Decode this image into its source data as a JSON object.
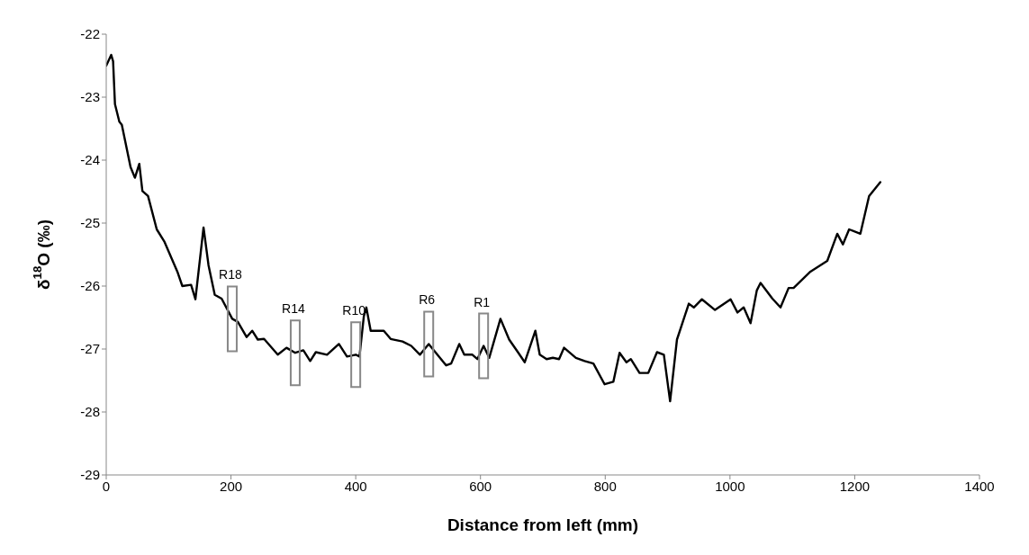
{
  "chart_data": {
    "type": "line",
    "xlabel": "Distance from left (mm)",
    "ylabel": "δ$^{18}$O (‰)",
    "xlim": [
      0,
      1400
    ],
    "xticks": [
      0,
      200,
      400,
      600,
      800,
      1000,
      1200,
      1400
    ],
    "ylim": [
      -29,
      -22
    ],
    "yticks": [
      -29,
      -28,
      -27,
      -26,
      -25,
      -24,
      -23,
      -22
    ],
    "grid": false,
    "legend": false,
    "marker": "none",
    "line_style": "solid",
    "annotations": [
      {
        "text": "R18",
        "x": 202,
        "y": -26.52
      },
      {
        "text": "R14",
        "x": 303,
        "y": -27.06
      },
      {
        "text": "R10",
        "x": 400,
        "y": -27.09
      },
      {
        "text": "R6",
        "x": 517,
        "y": -26.92
      },
      {
        "text": "R1",
        "x": 605,
        "y": -26.95
      }
    ],
    "x": [
      0,
      8,
      11,
      14,
      21,
      25,
      39,
      46,
      53,
      58,
      67,
      81,
      93,
      114,
      122,
      136,
      143,
      156,
      164,
      174,
      185,
      202,
      211,
      225,
      234,
      243,
      253,
      275,
      289,
      303,
      316,
      327,
      336,
      354,
      373,
      386,
      400,
      406,
      413,
      417,
      424,
      445,
      456,
      475,
      489,
      503,
      517,
      545,
      553,
      566,
      574,
      587,
      595,
      605,
      614,
      632,
      646,
      660,
      671,
      688,
      695,
      706,
      716,
      726,
      734,
      753,
      767,
      781,
      799,
      813,
      823,
      834,
      841,
      855,
      869,
      883,
      894,
      904,
      915,
      934,
      942,
      955,
      976,
      1001,
      1012,
      1022,
      1033,
      1043,
      1049,
      1068,
      1081,
      1094,
      1102,
      1129,
      1156,
      1172,
      1181,
      1191,
      1209,
      1223,
      1241
    ],
    "series": [
      {
        "color": "#000000",
        "values": [
          -22.5,
          -22.33,
          -22.43,
          -23.11,
          -23.39,
          -23.44,
          -24.11,
          -24.28,
          -24.06,
          -24.49,
          -24.57,
          -25.1,
          -25.29,
          -25.77,
          -26.0,
          -25.98,
          -26.21,
          -25.07,
          -25.67,
          -26.14,
          -26.2,
          -26.52,
          -26.57,
          -26.81,
          -26.71,
          -26.85,
          -26.84,
          -27.09,
          -26.98,
          -27.06,
          -27.02,
          -27.19,
          -27.05,
          -27.09,
          -26.92,
          -27.12,
          -27.09,
          -27.12,
          -26.48,
          -26.34,
          -26.71,
          -26.71,
          -26.84,
          -26.88,
          -26.95,
          -27.09,
          -26.92,
          -27.26,
          -27.23,
          -26.92,
          -27.09,
          -27.09,
          -27.16,
          -26.95,
          -27.14,
          -26.52,
          -26.85,
          -27.05,
          -27.21,
          -26.71,
          -27.09,
          -27.16,
          -27.14,
          -27.16,
          -26.98,
          -27.14,
          -27.19,
          -27.23,
          -27.56,
          -27.52,
          -27.06,
          -27.21,
          -27.16,
          -27.38,
          -27.38,
          -27.05,
          -27.09,
          -27.83,
          -26.85,
          -26.28,
          -26.34,
          -26.21,
          -26.38,
          -26.21,
          -26.42,
          -26.34,
          -26.59,
          -26.07,
          -25.95,
          -26.2,
          -26.34,
          -26.03,
          -26.03,
          -25.77,
          -25.6,
          -25.17,
          -25.34,
          -25.1,
          -25.17,
          -24.57,
          -24.35
        ]
      }
    ]
  }
}
